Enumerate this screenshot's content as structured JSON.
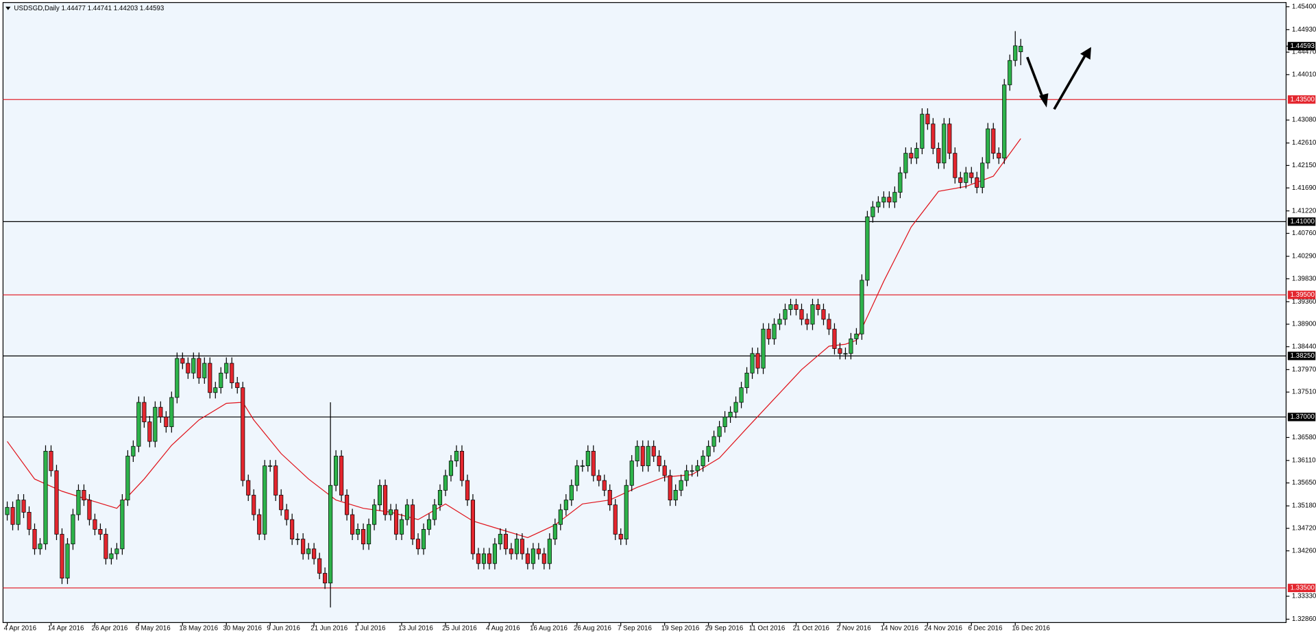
{
  "chart_data": {
    "type": "candlestick",
    "title": "USDSGD,Daily  1.44477 1.44741 1.44203 1.44593",
    "categories": [
      "4 Apr 2016",
      null,
      null,
      null,
      null,
      null,
      null,
      null,
      "14 Apr 2016",
      null,
      null,
      null,
      null,
      null,
      null,
      null,
      "26 Apr 2016",
      null,
      null,
      null,
      null,
      null,
      null,
      null,
      "6 May 2016",
      null,
      null,
      null,
      null,
      null,
      null,
      null,
      "18 May 2016",
      null,
      null,
      null,
      null,
      null,
      null,
      null,
      "30 May 2016",
      null,
      null,
      null,
      null,
      null,
      null,
      null,
      "9 Jun 2016",
      null,
      null,
      null,
      null,
      null,
      null,
      null,
      "21 Jun 2016",
      null,
      null,
      null,
      null,
      null,
      null,
      null,
      "1 Jul 2016",
      null,
      null,
      null,
      null,
      null,
      null,
      null,
      "13 Jul 2016",
      null,
      null,
      null,
      null,
      null,
      null,
      null,
      "25 Jul 2016",
      null,
      null,
      null,
      null,
      null,
      null,
      null,
      "4 Aug 2016",
      null,
      null,
      null,
      null,
      null,
      null,
      null,
      "16 Aug 2016",
      null,
      null,
      null,
      null,
      null,
      null,
      null,
      "26 Aug 2016",
      null,
      null,
      null,
      null,
      null,
      null,
      null,
      "7 Sep 2016",
      null,
      null,
      null,
      null,
      null,
      null,
      null,
      "19 Sep 2016",
      null,
      null,
      null,
      null,
      null,
      null,
      null,
      "29 Sep 2016",
      null,
      null,
      null,
      null,
      null,
      null,
      null,
      "11 Oct 2016",
      null,
      null,
      null,
      null,
      null,
      null,
      null,
      "21 Oct 2016",
      null,
      null,
      null,
      null,
      null,
      null,
      null,
      "2 Nov 2016",
      null,
      null,
      null,
      null,
      null,
      null,
      null,
      "14 Nov 2016",
      null,
      null,
      null,
      null,
      null,
      null,
      null,
      "24 Nov 2016",
      null,
      null,
      null,
      null,
      null,
      null,
      null,
      "6 Dec 2016",
      null,
      null,
      null,
      null,
      null,
      null,
      null,
      "16 Dec 2016",
      null
    ],
    "open": [
      1.35,
      1.3515,
      1.348,
      1.353,
      1.3505,
      1.347,
      1.343,
      1.344,
      1.363,
      1.359,
      1.346,
      1.337,
      1.344,
      1.35,
      1.355,
      1.353,
      1.349,
      1.347,
      1.346,
      1.341,
      1.342,
      1.343,
      1.353,
      1.362,
      1.364,
      1.373,
      1.369,
      1.365,
      1.372,
      1.37,
      1.368,
      1.374,
      1.382,
      1.381,
      1.379,
      1.382,
      1.378,
      1.381,
      1.375,
      1.376,
      1.379,
      1.381,
      1.377,
      1.376,
      1.357,
      1.354,
      1.35,
      1.346,
      1.36,
      1.36,
      1.354,
      1.351,
      1.349,
      1.345,
      1.345,
      1.342,
      1.343,
      1.341,
      1.338,
      1.336,
      1.356,
      1.362,
      1.354,
      1.35,
      1.346,
      1.347,
      1.344,
      1.348,
      1.352,
      1.356,
      1.35,
      1.351,
      1.346,
      1.349,
      1.352,
      1.345,
      1.343,
      1.347,
      1.349,
      1.352,
      1.355,
      1.358,
      1.361,
      1.363,
      1.357,
      1.353,
      1.342,
      1.34,
      1.342,
      1.34,
      1.344,
      1.346,
      1.343,
      1.342,
      1.345,
      1.342,
      1.34,
      1.343,
      1.342,
      1.34,
      1.345,
      1.348,
      1.351,
      1.353,
      1.356,
      1.36,
      1.36,
      1.363,
      1.358,
      1.357,
      1.355,
      1.352,
      1.346,
      1.345,
      1.356,
      1.361,
      1.364,
      1.36,
      1.364,
      1.362,
      1.36,
      1.358,
      1.353,
      1.355,
      1.357,
      1.359,
      1.359,
      1.36,
      1.362,
      1.364,
      1.366,
      1.368,
      1.37,
      1.371,
      1.373,
      1.376,
      1.379,
      1.383,
      1.38,
      1.388,
      1.386,
      1.389,
      1.39,
      1.392,
      1.393,
      1.392,
      1.39,
      1.389,
      1.393,
      1.392,
      1.39,
      1.388,
      1.384,
      1.383,
      1.383,
      1.386,
      1.387,
      1.398,
      1.411,
      1.413,
      1.414,
      1.415,
      1.414,
      1.416,
      1.42,
      1.424,
      1.423,
      1.425,
      1.432,
      1.43,
      1.425,
      1.422,
      1.43,
      1.424,
      1.419,
      1.418,
      1.42,
      1.419,
      1.417,
      1.422,
      1.429,
      1.424,
      1.423,
      1.438,
      1.443,
      1.44477
    ],
    "high": [
      1.3527,
      1.3527,
      1.3542,
      1.3542,
      1.3517,
      1.3482,
      1.3452,
      1.3642,
      1.3642,
      1.3602,
      1.3472,
      1.3452,
      1.3512,
      1.3562,
      1.3562,
      1.3542,
      1.3502,
      1.3482,
      1.3472,
      1.3432,
      1.3442,
      1.3542,
      1.3632,
      1.3652,
      1.3742,
      1.3742,
      1.3702,
      1.3732,
      1.3732,
      1.3712,
      1.3752,
      1.3832,
      1.3832,
      1.3822,
      1.3832,
      1.3832,
      1.3822,
      1.3822,
      1.3772,
      1.3802,
      1.3822,
      1.3822,
      1.3782,
      1.3772,
      1.3582,
      1.3552,
      1.3512,
      1.3612,
      1.3612,
      1.3612,
      1.3552,
      1.3522,
      1.3502,
      1.3462,
      1.3462,
      1.3442,
      1.3442,
      1.3422,
      1.3392,
      1.373,
      1.3632,
      1.3632,
      1.3552,
      1.3512,
      1.3482,
      1.3482,
      1.3492,
      1.3532,
      1.3572,
      1.3572,
      1.3522,
      1.3522,
      1.3502,
      1.3532,
      1.3532,
      1.3462,
      1.3482,
      1.3502,
      1.3532,
      1.3562,
      1.3592,
      1.3622,
      1.3642,
      1.3642,
      1.3582,
      1.3542,
      1.3432,
      1.3432,
      1.3432,
      1.3452,
      1.3472,
      1.3472,
      1.3442,
      1.3462,
      1.3462,
      1.3432,
      1.3442,
      1.3442,
      1.3432,
      1.3462,
      1.3492,
      1.3522,
      1.3542,
      1.3572,
      1.3612,
      1.3612,
      1.3642,
      1.3642,
      1.3592,
      1.3582,
      1.3562,
      1.3532,
      1.3472,
      1.3572,
      1.3622,
      1.3652,
      1.3652,
      1.3652,
      1.3652,
      1.3632,
      1.3612,
      1.3592,
      1.3562,
      1.3582,
      1.3602,
      1.3602,
      1.3612,
      1.3632,
      1.3652,
      1.3672,
      1.3692,
      1.3712,
      1.3722,
      1.3742,
      1.3772,
      1.3802,
      1.3842,
      1.3842,
      1.3892,
      1.3892,
      1.3902,
      1.3912,
      1.3932,
      1.3942,
      1.3942,
      1.3932,
      1.3912,
      1.3942,
      1.3942,
      1.3932,
      1.3912,
      1.3892,
      1.3852,
      1.3842,
      1.3872,
      1.3882,
      1.3992,
      1.4122,
      1.4142,
      1.4152,
      1.4162,
      1.4162,
      1.4172,
      1.4212,
      1.4252,
      1.4252,
      1.4262,
      1.4332,
      1.4332,
      1.4312,
      1.4262,
      1.4312,
      1.4312,
      1.4252,
      1.4202,
      1.4212,
      1.4212,
      1.4202,
      1.4232,
      1.4302,
      1.4302,
      1.4252,
      1.4392,
      1.4442,
      1.449,
      1.44741
    ],
    "low": [
      1.3488,
      1.3468,
      1.3468,
      1.3493,
      1.3458,
      1.3418,
      1.3418,
      1.3428,
      1.3578,
      1.3448,
      1.3358,
      1.3358,
      1.3428,
      1.3488,
      1.3518,
      1.3478,
      1.3458,
      1.3448,
      1.3398,
      1.3398,
      1.3408,
      1.3418,
      1.3518,
      1.3608,
      1.3628,
      1.3678,
      1.3638,
      1.3638,
      1.3688,
      1.3668,
      1.3668,
      1.3728,
      1.3798,
      1.3778,
      1.3778,
      1.3768,
      1.3768,
      1.3738,
      1.3738,
      1.3748,
      1.3778,
      1.3758,
      1.3748,
      1.3558,
      1.3528,
      1.3488,
      1.3448,
      1.3448,
      1.3588,
      1.3528,
      1.3498,
      1.3478,
      1.3438,
      1.3438,
      1.3408,
      1.3408,
      1.3398,
      1.3368,
      1.3348,
      1.331,
      1.3548,
      1.3528,
      1.3488,
      1.3448,
      1.3448,
      1.3428,
      1.3428,
      1.3468,
      1.3508,
      1.3488,
      1.3488,
      1.3448,
      1.3448,
      1.3478,
      1.3438,
      1.3418,
      1.3418,
      1.3458,
      1.3478,
      1.3508,
      1.3538,
      1.3568,
      1.3598,
      1.3558,
      1.3518,
      1.3408,
      1.3388,
      1.3388,
      1.3388,
      1.3388,
      1.3428,
      1.3418,
      1.3408,
      1.3408,
      1.3408,
      1.3388,
      1.3388,
      1.3408,
      1.3388,
      1.3388,
      1.3438,
      1.3468,
      1.3498,
      1.3518,
      1.3548,
      1.3588,
      1.3588,
      1.3568,
      1.3558,
      1.3538,
      1.3508,
      1.3448,
      1.3438,
      1.3438,
      1.3548,
      1.3598,
      1.3588,
      1.3588,
      1.3608,
      1.3588,
      1.3568,
      1.3518,
      1.3518,
      1.3538,
      1.3558,
      1.3578,
      1.3578,
      1.3588,
      1.3608,
      1.3628,
      1.3648,
      1.3668,
      1.3688,
      1.3698,
      1.3718,
      1.3748,
      1.3778,
      1.3788,
      1.3788,
      1.3848,
      1.3848,
      1.3878,
      1.3888,
      1.3908,
      1.3908,
      1.3888,
      1.3878,
      1.3878,
      1.3908,
      1.3888,
      1.3868,
      1.3828,
      1.3818,
      1.3818,
      1.3818,
      1.3848,
      1.3858,
      1.3968,
      1.4098,
      1.4118,
      1.4128,
      1.4128,
      1.4128,
      1.4148,
      1.4188,
      1.4218,
      1.4218,
      1.4238,
      1.4288,
      1.4238,
      1.4208,
      1.4208,
      1.4228,
      1.4178,
      1.4168,
      1.4168,
      1.4178,
      1.4158,
      1.4158,
      1.4208,
      1.4228,
      1.4218,
      1.4218,
      1.4368,
      1.4418,
      1.44203
    ],
    "close": [
      1.3515,
      1.348,
      1.353,
      1.3505,
      1.347,
      1.343,
      1.344,
      1.363,
      1.359,
      1.346,
      1.337,
      1.344,
      1.35,
      1.355,
      1.353,
      1.349,
      1.347,
      1.346,
      1.341,
      1.342,
      1.343,
      1.353,
      1.362,
      1.364,
      1.373,
      1.369,
      1.365,
      1.372,
      1.37,
      1.368,
      1.374,
      1.382,
      1.381,
      1.379,
      1.382,
      1.378,
      1.381,
      1.375,
      1.376,
      1.379,
      1.381,
      1.377,
      1.376,
      1.357,
      1.354,
      1.35,
      1.346,
      1.36,
      1.36,
      1.354,
      1.351,
      1.349,
      1.345,
      1.345,
      1.342,
      1.343,
      1.341,
      1.338,
      1.336,
      1.356,
      1.362,
      1.354,
      1.35,
      1.346,
      1.347,
      1.344,
      1.348,
      1.352,
      1.356,
      1.35,
      1.351,
      1.346,
      1.349,
      1.352,
      1.345,
      1.343,
      1.347,
      1.349,
      1.352,
      1.355,
      1.358,
      1.361,
      1.363,
      1.357,
      1.353,
      1.342,
      1.34,
      1.342,
      1.34,
      1.344,
      1.346,
      1.343,
      1.342,
      1.345,
      1.342,
      1.34,
      1.343,
      1.342,
      1.34,
      1.345,
      1.348,
      1.351,
      1.353,
      1.356,
      1.36,
      1.36,
      1.363,
      1.358,
      1.357,
      1.355,
      1.352,
      1.346,
      1.345,
      1.356,
      1.361,
      1.364,
      1.36,
      1.364,
      1.362,
      1.36,
      1.358,
      1.353,
      1.355,
      1.357,
      1.359,
      1.359,
      1.36,
      1.362,
      1.364,
      1.366,
      1.368,
      1.37,
      1.371,
      1.373,
      1.376,
      1.379,
      1.383,
      1.38,
      1.388,
      1.386,
      1.389,
      1.39,
      1.392,
      1.393,
      1.392,
      1.39,
      1.389,
      1.393,
      1.392,
      1.39,
      1.388,
      1.384,
      1.383,
      1.383,
      1.386,
      1.387,
      1.398,
      1.411,
      1.413,
      1.414,
      1.415,
      1.414,
      1.416,
      1.42,
      1.424,
      1.423,
      1.425,
      1.432,
      1.43,
      1.425,
      1.422,
      1.43,
      1.424,
      1.419,
      1.418,
      1.42,
      1.419,
      1.417,
      1.422,
      1.429,
      1.424,
      1.423,
      1.438,
      1.443,
      1.446,
      1.44593
    ],
    "up_color": "#2db34a",
    "down_color": "#e3262e",
    "moving_average": {
      "color": "#e0121a",
      "x": [
        0,
        5,
        10,
        15,
        20,
        25,
        30,
        35,
        40,
        43,
        45,
        50,
        55,
        60,
        65,
        70,
        75,
        80,
        85,
        90,
        95,
        100,
        105,
        110,
        115,
        120,
        125,
        130,
        135,
        140,
        145,
        150,
        153,
        155,
        160,
        165,
        170,
        175,
        180,
        185
      ],
      "values": [
        1.365,
        1.3573,
        1.3548,
        1.353,
        1.3513,
        1.3573,
        1.3642,
        1.3694,
        1.3728,
        1.373,
        1.3694,
        1.3625,
        1.3573,
        1.353,
        1.3513,
        1.3505,
        1.349,
        1.3522,
        1.3487,
        1.347,
        1.3453,
        1.3479,
        1.3522,
        1.353,
        1.3556,
        1.3577,
        1.3582,
        1.3616,
        1.3677,
        1.3737,
        1.3797,
        1.3845,
        1.3849,
        1.3857,
        1.3978,
        1.4089,
        1.4162,
        1.4172,
        1.4193,
        1.427
      ]
    },
    "ylim": [
      1.3286,
      1.454
    ],
    "yticks": [
      {
        "value": 1.454,
        "label": "1.45400"
      },
      {
        "value": 1.4493,
        "label": "1.44930"
      },
      {
        "value": 1.4447,
        "label": "1.44470"
      },
      {
        "value": 1.4401,
        "label": "1.44010"
      },
      {
        "value": 1.4308,
        "label": "1.43080"
      },
      {
        "value": 1.4261,
        "label": "1.42610"
      },
      {
        "value": 1.4215,
        "label": "1.42150"
      },
      {
        "value": 1.4169,
        "label": "1.41690"
      },
      {
        "value": 1.4122,
        "label": "1.41220"
      },
      {
        "value": 1.4076,
        "label": "1.40760"
      },
      {
        "value": 1.4029,
        "label": "1.40290"
      },
      {
        "value": 1.3983,
        "label": "1.39830"
      },
      {
        "value": 1.3936,
        "label": "1.39360"
      },
      {
        "value": 1.389,
        "label": "1.38900"
      },
      {
        "value": 1.3844,
        "label": "1.38440"
      },
      {
        "value": 1.3797,
        "label": "1.37970"
      },
      {
        "value": 1.3751,
        "label": "1.37510"
      },
      {
        "value": 1.3658,
        "label": "1.36580"
      },
      {
        "value": 1.3611,
        "label": "1.36110"
      },
      {
        "value": 1.3565,
        "label": "1.35650"
      },
      {
        "value": 1.3518,
        "label": "1.35180"
      },
      {
        "value": 1.3472,
        "label": "1.34720"
      },
      {
        "value": 1.3426,
        "label": "1.34260"
      },
      {
        "value": 1.3333,
        "label": "1.33330"
      },
      {
        "value": 1.3286,
        "label": "1.32860"
      }
    ],
    "levels": [
      {
        "value": 1.435,
        "label": "1.43500",
        "color": "#e3262e"
      },
      {
        "value": 1.41,
        "label": "1.41000",
        "color": "#000000"
      },
      {
        "value": 1.395,
        "label": "1.39500",
        "color": "#e3262e"
      },
      {
        "value": 1.3825,
        "label": "1.38250",
        "color": "#000000"
      },
      {
        "value": 1.37,
        "label": "1.37000",
        "color": "#000000"
      },
      {
        "value": 1.335,
        "label": "1.33500",
        "color": "#e3262e"
      }
    ]
  }
}
